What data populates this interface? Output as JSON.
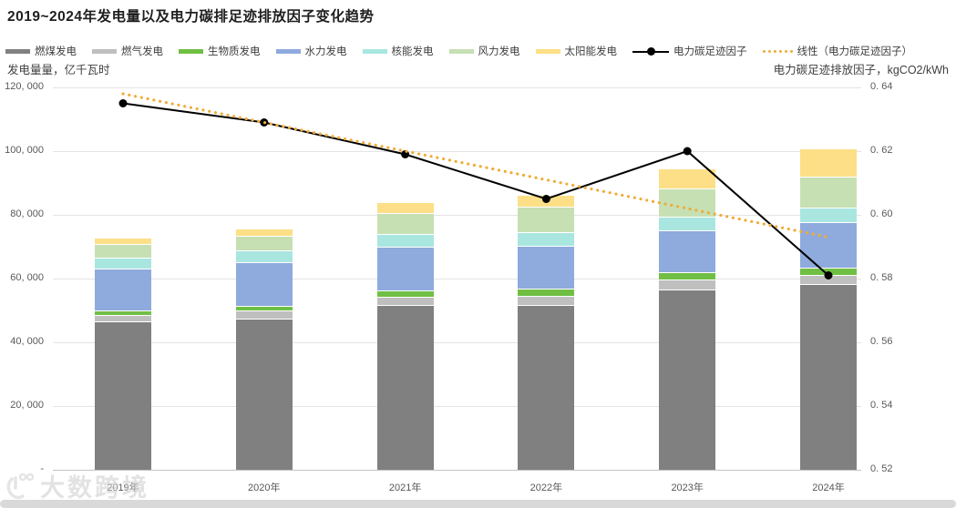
{
  "title": "2019~2024年发电量以及电力碳排足迹排放因子变化趋势",
  "watermark": "大数跨境",
  "axes": {
    "left_unit_label": "发电量量，亿千瓦时",
    "right_unit_label": "电力碳足迹排放因子，kgCO2/kWh",
    "left_tick_labels": [
      "120, 000",
      "100, 000",
      "80, 000",
      "60, 000",
      "40, 000",
      "20, 000",
      "-"
    ],
    "right_tick_labels": [
      "0. 64",
      "0. 62",
      "0. 60",
      "0. 58",
      "0. 56",
      "0. 54",
      "0. 52"
    ]
  },
  "legend": [
    {
      "label": "燃煤发电",
      "type": "swatch",
      "color": "#808080"
    },
    {
      "label": "燃气发电",
      "type": "swatch",
      "color": "#bfbfbf"
    },
    {
      "label": "生物质发电",
      "type": "swatch",
      "color": "#70bf44"
    },
    {
      "label": "水力发电",
      "type": "swatch",
      "color": "#8faadc"
    },
    {
      "label": "核能发电",
      "type": "swatch",
      "color": "#a9e6e0"
    },
    {
      "label": "风力发电",
      "type": "swatch",
      "color": "#c6e0b4"
    },
    {
      "label": "太阳能发电",
      "type": "swatch",
      "color": "#fcdf87"
    },
    {
      "label": "电力碳足迹因子",
      "type": "line",
      "color": "#000000"
    },
    {
      "label": "线性（电力碳足迹因子）",
      "type": "dots",
      "color": "#efac38"
    }
  ],
  "chart_data": {
    "type": "bar",
    "subtype": "stacked-bars-with-line",
    "categories": [
      "2019年",
      "2020年",
      "2021年",
      "2022年",
      "2023年",
      "2024年"
    ],
    "series": [
      {
        "name": "燃煤发电",
        "color": "#808080",
        "values": [
          46700,
          47300,
          51700,
          51600,
          56700,
          58400
        ]
      },
      {
        "name": "燃气发电",
        "color": "#bfbfbf",
        "values": [
          1900,
          2700,
          2700,
          2900,
          2900,
          2700
        ]
      },
      {
        "name": "生物质发电",
        "color": "#70bf44",
        "values": [
          1500,
          1500,
          2000,
          2300,
          2500,
          2400
        ]
      },
      {
        "name": "水力发电",
        "color": "#8faadc",
        "values": [
          13000,
          13700,
          13500,
          13400,
          13100,
          14200
        ]
      },
      {
        "name": "核能发电",
        "color": "#a9e6e0",
        "values": [
          3600,
          3600,
          4100,
          4500,
          4300,
          4600
        ]
      },
      {
        "name": "风力发电",
        "color": "#c6e0b4",
        "values": [
          4200,
          4600,
          6600,
          7900,
          8700,
          9700
        ]
      },
      {
        "name": "太阳能发电",
        "color": "#fcdf87",
        "values": [
          2100,
          2400,
          3300,
          3700,
          6300,
          8900
        ]
      }
    ],
    "line_series": {
      "name": "电力碳足迹因子",
      "color": "#000000",
      "values": [
        0.635,
        0.629,
        0.619,
        0.605,
        0.62,
        0.581
      ]
    },
    "trend_line": {
      "name": "线性（电力碳足迹因子）",
      "color": "#efac38",
      "start": 0.638,
      "end": 0.593
    },
    "left_axis": {
      "label": "发电量量，亿千瓦时",
      "min": 0,
      "max": 120000,
      "step": 20000
    },
    "right_axis": {
      "label": "电力碳足迹排放因子，kgCO2/kWh",
      "min": 0.52,
      "max": 0.64,
      "step": 0.02
    },
    "grid": true,
    "legend_position": "top"
  }
}
